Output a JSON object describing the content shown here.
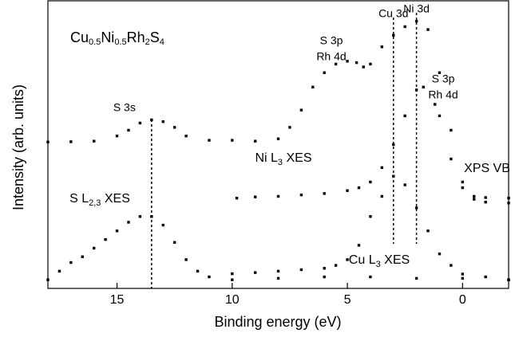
{
  "chart_data": {
    "type": "scatter",
    "title_parts": [
      "Cu",
      "0.5",
      "Ni",
      "0.5",
      "Rh",
      "2",
      "S",
      "4"
    ],
    "x_label": "Binding energy (eV)",
    "y_label": "Intensity (arb. units)",
    "xlim": [
      18,
      -2
    ],
    "ylim": [
      0,
      1
    ],
    "xticks": [
      15,
      10,
      5,
      0
    ],
    "color": "#000000",
    "series": [
      {
        "name_parts": [
          "XPS VB"
        ],
        "x": [
          18,
          17,
          16,
          15,
          14.5,
          14,
          13.5,
          13,
          12.5,
          12,
          11,
          10,
          9,
          8,
          7.5,
          7,
          6.5,
          6,
          5.5,
          5,
          4.6,
          4.3,
          4,
          3.5,
          3,
          2.5,
          2,
          1.5,
          1,
          0.5,
          0,
          -0.5,
          -1,
          -2
        ],
        "values": [
          0.509,
          0.51,
          0.512,
          0.53,
          0.55,
          0.575,
          0.586,
          0.58,
          0.56,
          0.53,
          0.515,
          0.515,
          0.512,
          0.52,
          0.56,
          0.62,
          0.7,
          0.75,
          0.78,
          0.79,
          0.785,
          0.77,
          0.78,
          0.84,
          0.88,
          0.91,
          0.929,
          0.9,
          0.75,
          0.55,
          0.37,
          0.31,
          0.3,
          0.297
        ]
      },
      {
        "name_parts": [
          "Ni L",
          "3",
          " XES"
        ],
        "x": [
          9.8,
          9,
          8,
          7,
          6,
          5,
          4.5,
          4,
          3.5,
          3,
          2.5,
          2,
          1.7,
          1.2,
          1,
          0.5,
          0,
          -0.5,
          -1,
          -2
        ],
        "values": [
          0.314,
          0.318,
          0.32,
          0.325,
          0.33,
          0.34,
          0.35,
          0.37,
          0.42,
          0.5,
          0.6,
          0.69,
          0.7,
          0.64,
          0.6,
          0.45,
          0.35,
          0.32,
          0.316,
          0.314
        ]
      },
      {
        "name_parts": [
          "Cu L",
          "3",
          " XES"
        ],
        "x": [
          10,
          9,
          8,
          7,
          6,
          5.5,
          5,
          4.5,
          4,
          3.5,
          3,
          2.5,
          2,
          1.5,
          1,
          0.5,
          0,
          -1,
          -2
        ],
        "values": [
          0.051,
          0.055,
          0.06,
          0.065,
          0.07,
          0.08,
          0.1,
          0.15,
          0.25,
          0.32,
          0.39,
          0.36,
          0.28,
          0.2,
          0.12,
          0.08,
          0.05,
          0.04,
          0.03
        ]
      },
      {
        "name_parts": [
          "S L",
          "2,3",
          " XES"
        ],
        "x": [
          18,
          17.5,
          17,
          16.5,
          16,
          15.5,
          15,
          14.5,
          14,
          13.5,
          13,
          12.5,
          12,
          11.5,
          11,
          10,
          8,
          6,
          4,
          2,
          0,
          -2
        ],
        "values": [
          0.03,
          0.06,
          0.09,
          0.11,
          0.14,
          0.17,
          0.2,
          0.23,
          0.25,
          0.25,
          0.22,
          0.16,
          0.1,
          0.06,
          0.04,
          0.03,
          0.035,
          0.04,
          0.04,
          0.035,
          0.035,
          0.03
        ]
      }
    ],
    "vlines": [
      {
        "x": 13.5,
        "label": "S 3s"
      },
      {
        "x": 3,
        "label": "Cu 3d"
      },
      {
        "x": 2,
        "label": "Ni 3d"
      }
    ],
    "annotations": [
      {
        "lines": [
          "S 3p",
          "Rh 4d"
        ]
      },
      {
        "lines": [
          "S 3p",
          "Rh 4d"
        ]
      }
    ]
  }
}
